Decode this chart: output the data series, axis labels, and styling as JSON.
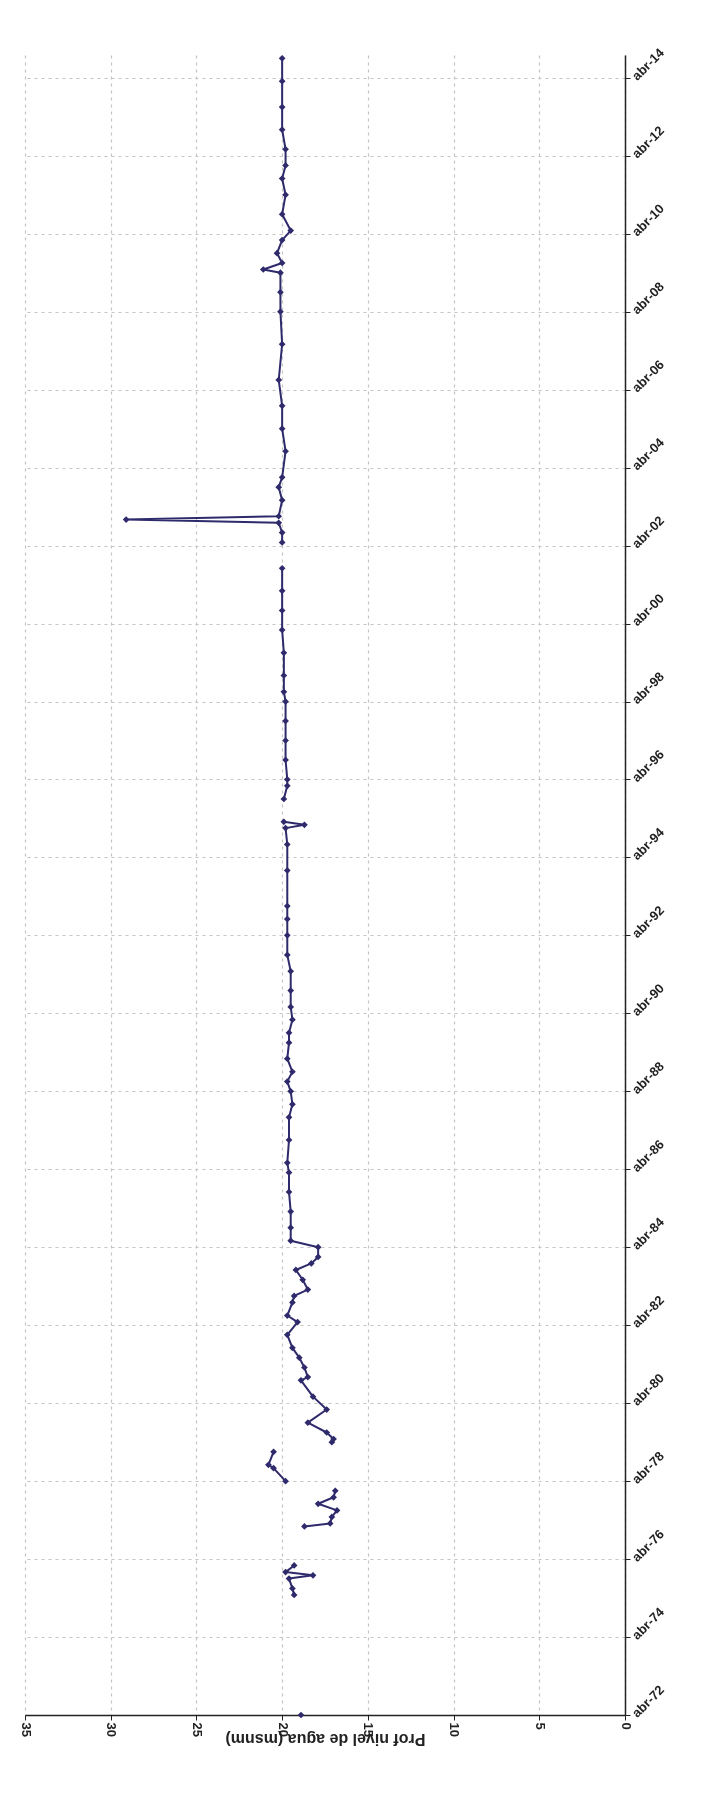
{
  "chart_data": {
    "type": "line",
    "orientation": "horizontal",
    "xlabel": "Prof nivel de agua (msnm)",
    "x": [
      "1972-04",
      "1974-06",
      "1975-05",
      "1975-07",
      "1975-10",
      "1975-11",
      "1975-12",
      "1976-02",
      "1976-08",
      "1977-02",
      "1977-03",
      "1977-05",
      "1977-07",
      "1977-09",
      "1977-11",
      "1978-01",
      "1978-03",
      "1978-04",
      "1978-08",
      "1978-09",
      "1979-01",
      "1979-02",
      "1979-04",
      "1979-05",
      "1979-07",
      "1979-10",
      "1980-02",
      "1980-06",
      "1980-11",
      "1980-12",
      "1981-03",
      "1981-06",
      "1981-09",
      "1982-01",
      "1982-05",
      "1982-07",
      "1982-11",
      "1983-01",
      "1983-03",
      "1983-06",
      "1983-09",
      "1983-11",
      "1984-01",
      "1984-04",
      "1984-06",
      "1984-10",
      "1985-03",
      "1985-09",
      "1986-03",
      "1986-06",
      "1987-01",
      "1987-08",
      "1987-12",
      "1988-04",
      "1988-07",
      "1988-10",
      "1989-02",
      "1989-07",
      "1989-10",
      "1990-02",
      "1990-06",
      "1990-11",
      "1991-05",
      "1991-10",
      "1992-04",
      "1992-09",
      "1993-01",
      "1993-12",
      "1994-08",
      "1995-01",
      "1995-02",
      "1995-03",
      "1995-06",
      "1995-10",
      "1996-02",
      "1996-04",
      "1996-10",
      "1997-04",
      "1997-10",
      "1998-04",
      "1998-07",
      "1998-12",
      "1999-07",
      "2000-02",
      "2000-08",
      "2001-02",
      "2001-09",
      "2001-12",
      "2002-05",
      "2002-08",
      "2002-11",
      "2002-12",
      "2003-01",
      "2003-06",
      "2003-10",
      "2004-01",
      "2004-09",
      "2005-04",
      "2005-11",
      "2006-07",
      "2007-06",
      "2008-04",
      "2008-10",
      "2009-04",
      "2009-05",
      "2009-07",
      "2009-10",
      "2010-02",
      "2010-05",
      "2010-10",
      "2011-04",
      "2011-09",
      "2012-01",
      "2012-06",
      "2012-12",
      "2013-07",
      "2014-03",
      "2014-10"
    ],
    "series": [
      {
        "color": "#2e2a6b",
        "values": [
          18.9,
          null,
          19.3,
          19.4,
          19.6,
          18.2,
          19.8,
          19.3,
          null,
          18.7,
          17.2,
          17.1,
          16.8,
          17.9,
          17.0,
          16.9,
          null,
          19.8,
          20.5,
          20.8,
          20.5,
          null,
          17.1,
          17.0,
          17.4,
          18.5,
          17.4,
          18.2,
          18.9,
          18.5,
          18.7,
          19.0,
          19.4,
          19.7,
          19.1,
          19.7,
          19.4,
          19.3,
          18.5,
          18.8,
          19.2,
          18.3,
          17.9,
          17.9,
          19.5,
          19.5,
          19.5,
          19.6,
          19.6,
          19.7,
          19.6,
          19.6,
          19.4,
          19.5,
          19.7,
          19.4,
          19.7,
          19.6,
          19.6,
          19.4,
          19.5,
          19.5,
          19.5,
          19.7,
          19.7,
          19.7,
          19.7,
          19.7,
          19.7,
          19.8,
          18.7,
          19.9,
          null,
          19.9,
          19.7,
          19.7,
          19.8,
          19.8,
          19.8,
          19.8,
          19.9,
          19.9,
          19.9,
          20.0,
          20.0,
          20.0,
          20.0,
          null,
          20.0,
          20.0,
          20.2,
          29.1,
          20.2,
          20.0,
          20.2,
          20.0,
          19.8,
          20.0,
          20.0,
          20.2,
          20.0,
          20.1,
          20.1,
          20.1,
          21.1,
          20.0,
          20.3,
          20.0,
          19.5,
          20.0,
          19.8,
          20.0,
          19.8,
          19.8,
          20.0,
          20.0,
          20.0,
          20.0
        ]
      }
    ],
    "xlim": [
      35,
      0
    ],
    "xticks": [
      35,
      30,
      25,
      20,
      15,
      10,
      5,
      0
    ],
    "ylim": [
      "1972-04",
      "2014-11"
    ],
    "yticks": [
      {
        "value": "1972-04",
        "label": "abr-72"
      },
      {
        "value": "1974-04",
        "label": "abr-74"
      },
      {
        "value": "1976-04",
        "label": "abr-76"
      },
      {
        "value": "1978-04",
        "label": "abr-78"
      },
      {
        "value": "1980-04",
        "label": "abr-80"
      },
      {
        "value": "1982-04",
        "label": "abr-82"
      },
      {
        "value": "1984-04",
        "label": "abr-84"
      },
      {
        "value": "1986-04",
        "label": "abr-86"
      },
      {
        "value": "1988-04",
        "label": "abr-88"
      },
      {
        "value": "1990-04",
        "label": "abr-90"
      },
      {
        "value": "1992-04",
        "label": "abr-92"
      },
      {
        "value": "1994-04",
        "label": "abr-94"
      },
      {
        "value": "1996-04",
        "label": "abr-96"
      },
      {
        "value": "1998-04",
        "label": "abr-98"
      },
      {
        "value": "2000-04",
        "label": "abr-00"
      },
      {
        "value": "2002-04",
        "label": "abr-02"
      },
      {
        "value": "2004-04",
        "label": "abr-04"
      },
      {
        "value": "2006-04",
        "label": "abr-06"
      },
      {
        "value": "2008-04",
        "label": "abr-08"
      },
      {
        "value": "2010-04",
        "label": "abr-10"
      },
      {
        "value": "2012-04",
        "label": "abr-12"
      },
      {
        "value": "2014-04",
        "label": "abr-14"
      }
    ],
    "grid": true,
    "marker": "diamond",
    "line_style": "solid"
  }
}
